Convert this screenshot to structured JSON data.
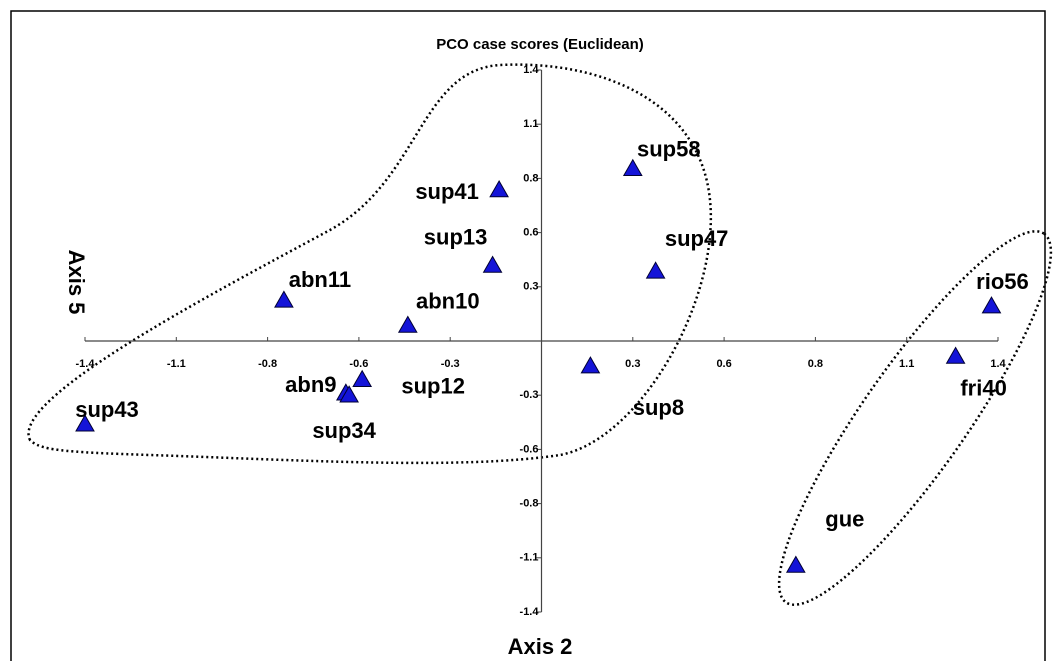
{
  "chart_data": {
    "type": "scatter",
    "title": "PCO case scores (Euclidean)",
    "x_label": "Axis 2",
    "y_label": "Axis 5",
    "color": "#1414d8",
    "grid": false,
    "xlim": [
      -1.4,
      1.4
    ],
    "ylim": [
      -1.4,
      1.4
    ],
    "xticks": [
      -1.4,
      {
        "value": -1.12,
        "label": "-1.1"
      },
      {
        "value": -0.84,
        "label": "-0.8"
      },
      {
        "value": -0.56,
        "label": "-0.6"
      },
      {
        "value": -0.28,
        "label": "-0.3"
      },
      {
        "value": 0.28,
        "label": "0.3"
      },
      {
        "value": 0.56,
        "label": "0.6"
      },
      {
        "value": 0.84,
        "label": "0.8"
      },
      {
        "value": 1.12,
        "label": "1.1"
      },
      1.4
    ],
    "yticks": [
      1.4,
      {
        "value": 1.12,
        "label": "1.1"
      },
      {
        "value": 0.84,
        "label": "0.8"
      },
      {
        "value": 0.56,
        "label": "0.6"
      },
      {
        "value": 0.28,
        "label": "0.3"
      },
      {
        "value": -0.28,
        "label": "-0.3"
      },
      {
        "value": -0.56,
        "label": "-0.6"
      },
      {
        "value": -0.84,
        "label": "-0.8"
      },
      {
        "value": -1.12,
        "label": "-1.1"
      },
      -1.4
    ],
    "labels": [
      "sup43",
      "abn11",
      "abn10",
      "abn9",
      "sup34",
      "sup12",
      "sup13",
      "sup41",
      "sup58",
      "sup47",
      "sup8",
      "rio56",
      "fri40",
      "gue"
    ],
    "x": [
      -1.4,
      -0.79,
      -0.41,
      -0.6,
      -0.59,
      -0.55,
      -0.15,
      -0.13,
      0.28,
      0.35,
      0.15,
      1.38,
      1.27,
      0.78
    ],
    "values": [
      -0.43,
      0.21,
      0.08,
      -0.27,
      -0.28,
      -0.2,
      0.39,
      0.78,
      0.89,
      0.36,
      -0.13,
      0.18,
      -0.08,
      -1.16
    ]
  }
}
